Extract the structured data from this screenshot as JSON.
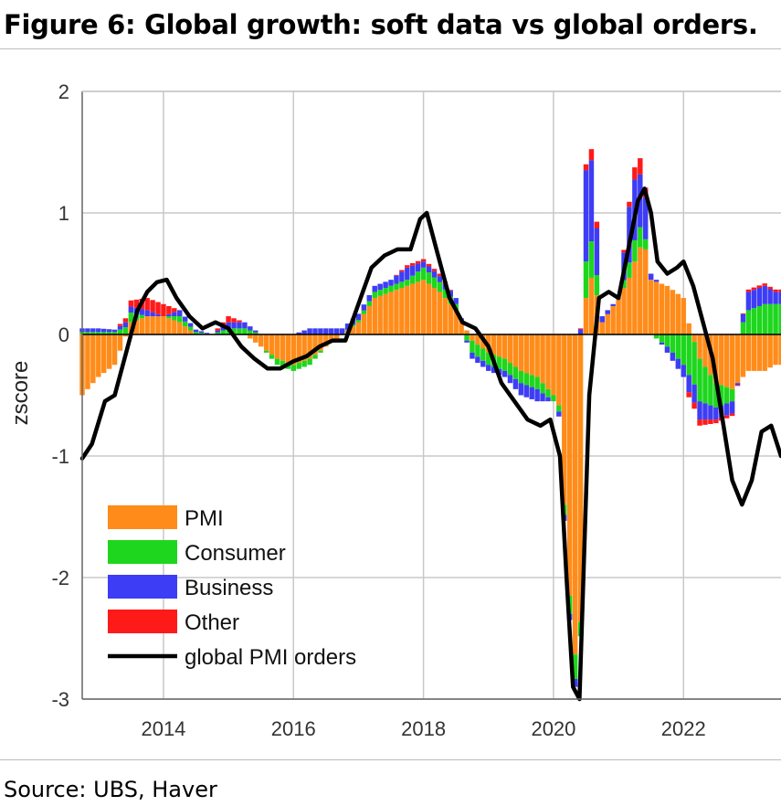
{
  "figure": {
    "title": "Figure 6: Global growth: soft data vs global orders.",
    "source": "Source: UBS, Haver"
  },
  "colors": {
    "PMI": "#ff8c1a",
    "Consumer": "#1ed61e",
    "Business": "#3d3df5",
    "Other": "#ff1a1a",
    "line": "#000000",
    "grid": "#c8c8c8"
  },
  "chart_data": {
    "type": "bar",
    "title": "",
    "xlabel": "",
    "ylabel": "zscore",
    "xlim": [
      2012.75,
      2023.5
    ],
    "ylim": [
      -3,
      2
    ],
    "xticks": [
      2014,
      2016,
      2018,
      2020,
      2022
    ],
    "yticks": [
      2,
      1,
      0,
      -1,
      -2,
      -3
    ],
    "grid": true,
    "legend_position": "bottom-left",
    "legend": [
      "PMI",
      "Consumer",
      "Business",
      "Other",
      "global PMI orders"
    ],
    "bar_series_names": [
      "PMI",
      "Consumer",
      "Business",
      "Other"
    ],
    "bars": {
      "x": [
        2012.75,
        2013.0,
        2013.25,
        2013.5,
        2013.75,
        2014.0,
        2014.25,
        2014.5,
        2014.75,
        2015.0,
        2015.25,
        2015.5,
        2015.75,
        2016.0,
        2016.25,
        2016.5,
        2016.75,
        2017.0,
        2017.25,
        2017.5,
        2017.75,
        2018.0,
        2018.25,
        2018.5,
        2018.75,
        2019.0,
        2019.25,
        2019.5,
        2019.75,
        2020.0,
        2020.1,
        2020.2,
        2020.3,
        2020.4,
        2020.5,
        2020.6,
        2020.75,
        2021.0,
        2021.2,
        2021.3,
        2021.4,
        2021.5,
        2021.75,
        2022.0,
        2022.1,
        2022.25,
        2022.5,
        2022.75,
        2023.0,
        2023.25,
        2023.4
      ],
      "PMI": [
        -0.5,
        -0.35,
        -0.25,
        0.1,
        0.15,
        0.15,
        0.1,
        0.0,
        0.0,
        0.0,
        0.0,
        -0.1,
        -0.2,
        -0.25,
        -0.2,
        -0.1,
        0.0,
        0.1,
        0.3,
        0.35,
        0.4,
        0.45,
        0.35,
        0.2,
        -0.05,
        -0.15,
        -0.2,
        -0.3,
        -0.35,
        -0.5,
        -0.6,
        -1.8,
        -2.5,
        -2.9,
        0.3,
        0.5,
        0.1,
        0.3,
        0.5,
        0.7,
        0.75,
        0.45,
        0.4,
        0.3,
        0.05,
        -0.2,
        -0.4,
        -0.45,
        -0.3,
        -0.3,
        -0.25
      ],
      "Consumer": [
        0.02,
        0.02,
        0.02,
        0.08,
        0.0,
        0.0,
        0.05,
        0.02,
        0.0,
        0.05,
        0.05,
        0.0,
        -0.05,
        -0.05,
        -0.05,
        0.0,
        0.0,
        0.02,
        0.05,
        0.05,
        0.05,
        0.1,
        0.08,
        0.05,
        -0.1,
        -0.1,
        -0.1,
        -0.1,
        -0.1,
        -0.05,
        -0.05,
        -0.1,
        -0.2,
        -0.2,
        0.3,
        0.3,
        0.0,
        0.0,
        0.15,
        0.2,
        0.1,
        0.0,
        -0.1,
        -0.25,
        -0.35,
        -0.35,
        -0.2,
        -0.1,
        0.2,
        0.25,
        0.25
      ],
      "Business": [
        0.03,
        0.03,
        0.02,
        0.05,
        0.05,
        0.0,
        0.05,
        0.02,
        0.0,
        0.05,
        0.05,
        0.0,
        0.0,
        0.0,
        0.05,
        0.05,
        0.05,
        0.05,
        0.05,
        0.05,
        0.1,
        0.05,
        0.05,
        0.05,
        -0.05,
        -0.05,
        -0.05,
        -0.1,
        -0.1,
        0.0,
        -0.05,
        -0.05,
        -0.05,
        -0.1,
        0.75,
        0.65,
        0.05,
        0.0,
        0.55,
        0.45,
        0.4,
        0.05,
        -0.05,
        -0.1,
        -0.15,
        -0.15,
        -0.1,
        -0.1,
        0.15,
        0.15,
        0.1
      ],
      "Other": [
        0.0,
        0.0,
        0.0,
        0.05,
        0.1,
        0.1,
        0.0,
        0.0,
        0.0,
        0.05,
        0.0,
        0.0,
        0.0,
        0.0,
        0.0,
        0.0,
        0.0,
        0.0,
        0.0,
        0.0,
        0.02,
        0.02,
        0.02,
        0.0,
        0.0,
        0.0,
        0.0,
        0.0,
        0.0,
        0.0,
        0.0,
        0.0,
        0.0,
        0.0,
        0.05,
        0.1,
        0.0,
        0.0,
        0.05,
        0.15,
        0.1,
        0.0,
        0.0,
        0.0,
        -0.05,
        -0.05,
        -0.03,
        -0.02,
        0.02,
        0.02,
        0.02
      ]
    },
    "line_series": {
      "name": "global PMI orders",
      "x": [
        2012.75,
        2012.9,
        2013.1,
        2013.25,
        2013.4,
        2013.6,
        2013.75,
        2013.9,
        2014.05,
        2014.2,
        2014.4,
        2014.6,
        2014.8,
        2015.0,
        2015.2,
        2015.4,
        2015.6,
        2015.8,
        2016.0,
        2016.2,
        2016.4,
        2016.6,
        2016.8,
        2017.0,
        2017.2,
        2017.4,
        2017.6,
        2017.8,
        2017.95,
        2018.05,
        2018.2,
        2018.4,
        2018.6,
        2018.8,
        2019.0,
        2019.2,
        2019.4,
        2019.6,
        2019.8,
        2019.95,
        2020.1,
        2020.2,
        2020.3,
        2020.4,
        2020.55,
        2020.7,
        2020.85,
        2021.0,
        2021.15,
        2021.3,
        2021.4,
        2021.5,
        2021.6,
        2021.75,
        2021.9,
        2022.0,
        2022.15,
        2022.3,
        2022.45,
        2022.6,
        2022.75,
        2022.9,
        2023.05,
        2023.2,
        2023.35,
        2023.5
      ],
      "y": [
        -1.02,
        -0.9,
        -0.55,
        -0.5,
        -0.2,
        0.2,
        0.35,
        0.43,
        0.45,
        0.3,
        0.15,
        0.05,
        0.1,
        0.05,
        -0.1,
        -0.2,
        -0.28,
        -0.28,
        -0.22,
        -0.18,
        -0.1,
        -0.05,
        -0.05,
        0.25,
        0.55,
        0.65,
        0.7,
        0.7,
        0.95,
        1.0,
        0.7,
        0.3,
        0.1,
        0.05,
        -0.1,
        -0.4,
        -0.55,
        -0.7,
        -0.75,
        -0.7,
        -1.0,
        -2.0,
        -2.9,
        -3.0,
        -0.5,
        0.3,
        0.35,
        0.3,
        0.7,
        1.1,
        1.2,
        1.0,
        0.6,
        0.5,
        0.55,
        0.6,
        0.4,
        0.1,
        -0.2,
        -0.7,
        -1.2,
        -1.4,
        -1.2,
        -0.8,
        -0.75,
        -1.0
      ]
    }
  }
}
